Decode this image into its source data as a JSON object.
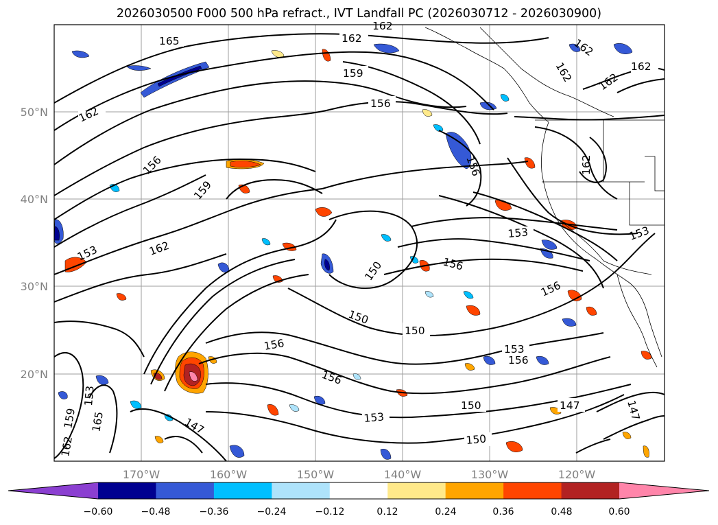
{
  "title": "2026030500 F000 500 hPa refract., IVT Landfall PC (2026030712 - 2026030900)",
  "map": {
    "lon_ticks": [
      "170°W",
      "160°W",
      "150°W",
      "140°W",
      "130°W",
      "120°W"
    ],
    "lat_ticks": [
      "50°N",
      "40°N",
      "30°N",
      "20°N"
    ],
    "contour_labels": [
      "165",
      "162",
      "162",
      "162",
      "162",
      "162",
      "162",
      "162",
      "159",
      "159",
      "156",
      "156",
      "156",
      "156",
      "156",
      "156",
      "156",
      "156",
      "153",
      "153",
      "153",
      "153",
      "153",
      "150",
      "150",
      "150",
      "150",
      "150",
      "147",
      "147",
      "147",
      "162",
      "162",
      "159",
      "165",
      "153",
      "162"
    ],
    "grid_color": "#9e9e9e",
    "contour_color": "#000000"
  },
  "colorbar": {
    "ticks": [
      "−0.60",
      "−0.48",
      "−0.36",
      "−0.24",
      "−0.12",
      "0.12",
      "0.24",
      "0.36",
      "0.48",
      "0.60"
    ],
    "colors": [
      "#8b3fd1",
      "#000090",
      "#3559d6",
      "#00bfff",
      "#aee3fb",
      "#ffffff",
      "#ffe98a",
      "#ffa500",
      "#ff4500",
      "#b22222",
      "#ff85aa",
      "#ff85aa"
    ]
  }
}
